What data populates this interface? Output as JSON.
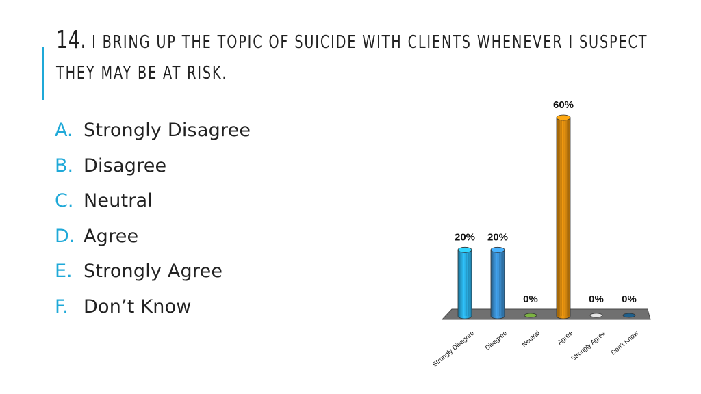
{
  "slide": {
    "number": "14.",
    "question": "I bring up the topic of suicide with clients whenever I suspect they may be at risk."
  },
  "options": [
    {
      "letter": "A.",
      "label": "Strongly Disagree"
    },
    {
      "letter": "B.",
      "label": "Disagree"
    },
    {
      "letter": "C.",
      "label": "Neutral"
    },
    {
      "letter": "D.",
      "label": "Agree"
    },
    {
      "letter": "E.",
      "label": "Strongly Agree"
    },
    {
      "letter": "F.",
      "label": "Don’t Know"
    }
  ],
  "colors": {
    "accent": "#1fa9d8",
    "floor": "#707070"
  },
  "chart_data": {
    "type": "bar",
    "title": "",
    "xlabel": "",
    "ylabel": "",
    "ylim": [
      0,
      60
    ],
    "grid": false,
    "categories": [
      "Strongly Disagree",
      "Disagree",
      "Neutral",
      "Agree",
      "Strongly Agree",
      "Don’t Know"
    ],
    "values": [
      20,
      20,
      0,
      60,
      0,
      0
    ],
    "data_labels": [
      "20%",
      "20%",
      "0%",
      "60%",
      "0%",
      "0%"
    ],
    "bar_colors": [
      "#29abe2",
      "#3a8fd0",
      "#7cb342",
      "#d4870e",
      "#e6e6e6",
      "#1f5f8b"
    ]
  }
}
